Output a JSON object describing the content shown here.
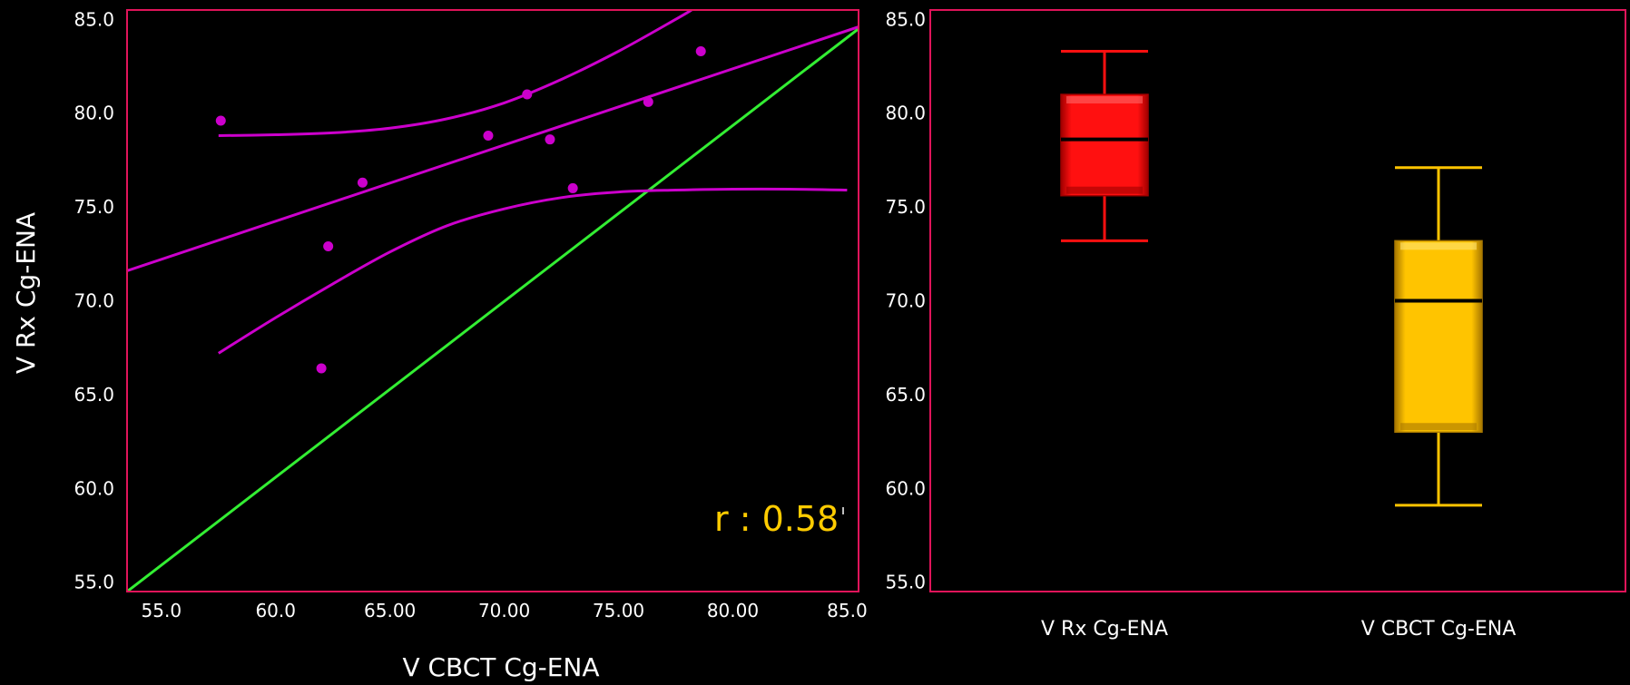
{
  "chart_data": [
    {
      "type": "scatter",
      "xlabel": "V  CBCT  Cg-ENA",
      "ylabel": "V  Rx  Cg-ENA",
      "xlim": [
        53.5,
        85.5
      ],
      "ylim": [
        54.5,
        85.5
      ],
      "x_ticks": [
        {
          "value": 55,
          "label": "55.0"
        },
        {
          "value": 60,
          "label": "60.0"
        },
        {
          "value": 65,
          "label": "65.00"
        },
        {
          "value": 70,
          "label": "70.00"
        },
        {
          "value": 75,
          "label": "75.00"
        },
        {
          "value": 80,
          "label": "80.00"
        },
        {
          "value": 85,
          "label": "85.0"
        }
      ],
      "y_ticks": [
        {
          "value": 55,
          "label": "55.0"
        },
        {
          "value": 60,
          "label": "60.0"
        },
        {
          "value": 65,
          "label": "65.0"
        },
        {
          "value": 70,
          "label": "70.0"
        },
        {
          "value": 75,
          "label": "75.0"
        },
        {
          "value": 80,
          "label": "80.0"
        },
        {
          "value": 85,
          "label": "85.0"
        }
      ],
      "points": [
        {
          "x": 57.6,
          "y": 79.6
        },
        {
          "x": 62.0,
          "y": 66.4
        },
        {
          "x": 62.3,
          "y": 72.9
        },
        {
          "x": 63.8,
          "y": 76.3
        },
        {
          "x": 69.3,
          "y": 78.8
        },
        {
          "x": 71.0,
          "y": 81.0
        },
        {
          "x": 72.0,
          "y": 78.6
        },
        {
          "x": 73.0,
          "y": 76.0
        },
        {
          "x": 76.3,
          "y": 80.6
        },
        {
          "x": 78.6,
          "y": 83.3
        }
      ],
      "regression": {
        "x": [
          53.5,
          85.5
        ],
        "y": [
          71.6,
          84.6
        ]
      },
      "upper_band": [
        {
          "x": 57.5,
          "y": 78.8
        },
        {
          "x": 60,
          "y": 78.85
        },
        {
          "x": 62.5,
          "y": 78.95
        },
        {
          "x": 65,
          "y": 79.2
        },
        {
          "x": 67.5,
          "y": 79.7
        },
        {
          "x": 70,
          "y": 80.55
        },
        {
          "x": 72.5,
          "y": 81.8
        },
        {
          "x": 75,
          "y": 83.3
        },
        {
          "x": 77.5,
          "y": 85.0
        },
        {
          "x": 78.2,
          "y": 85.5
        }
      ],
      "lower_band": [
        {
          "x": 57.5,
          "y": 67.2
        },
        {
          "x": 60,
          "y": 69.1
        },
        {
          "x": 62.5,
          "y": 70.9
        },
        {
          "x": 65,
          "y": 72.6
        },
        {
          "x": 67.5,
          "y": 74.0
        },
        {
          "x": 70,
          "y": 74.9
        },
        {
          "x": 72.5,
          "y": 75.5
        },
        {
          "x": 75,
          "y": 75.8
        },
        {
          "x": 77.5,
          "y": 75.9
        },
        {
          "x": 80,
          "y": 75.95
        },
        {
          "x": 82.5,
          "y": 75.95
        },
        {
          "x": 85,
          "y": 75.9
        }
      ],
      "identity_line": {
        "x": [
          53.5,
          85.5
        ],
        "y": [
          54.5,
          84.5
        ]
      },
      "annotation": "r : 0.58",
      "colors": {
        "points": "#cc00cc",
        "fit": "#cc00cc",
        "identity": "#33ee33",
        "frame": "#e0145a",
        "annotation": "#ffcc00",
        "text": "#ffffff"
      }
    },
    {
      "type": "box",
      "ylim": [
        54.5,
        85.5
      ],
      "y_ticks": [
        {
          "value": 55,
          "label": "55.0"
        },
        {
          "value": 60,
          "label": "60.0"
        },
        {
          "value": 65,
          "label": "65.0"
        },
        {
          "value": 70,
          "label": "70.0"
        },
        {
          "value": 75,
          "label": "75.0"
        },
        {
          "value": 80,
          "label": "80.0"
        },
        {
          "value": 85,
          "label": "85.0"
        }
      ],
      "categories": [
        "V  Rx  Cg-ENA",
        "V  CBCT  Cg-ENA"
      ],
      "boxes": [
        {
          "min": 73.2,
          "q1": 75.6,
          "median": 78.6,
          "q3": 81.0,
          "max": 83.3,
          "color": "#ff1010",
          "dark": "#a00000",
          "light": "#ff7070",
          "median_color": "#000000"
        },
        {
          "min": 59.1,
          "q1": 63.0,
          "median": 70.0,
          "q3": 73.2,
          "max": 77.1,
          "color": "#ffc400",
          "dark": "#a87800",
          "light": "#ffe880",
          "median_color": "#000000"
        }
      ],
      "colors": {
        "frame": "#e0145a",
        "text": "#ffffff"
      }
    }
  ]
}
